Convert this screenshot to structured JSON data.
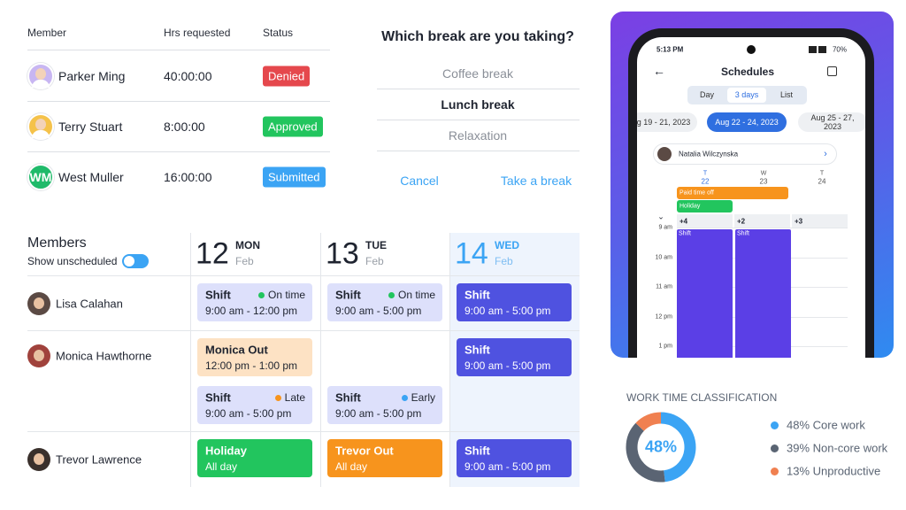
{
  "requests": {
    "headers": [
      "Member",
      "Hrs requested",
      "Status"
    ],
    "rows": [
      {
        "name": "Parker Ming",
        "hours": "40:00:00",
        "status": "Denied",
        "status_color": "#e5484d",
        "avatar_color": "#c8b6f2"
      },
      {
        "name": "Terry Stuart",
        "hours": "8:00:00",
        "status": "Approved",
        "status_color": "#22c55e",
        "avatar_color": "#f5c24a"
      },
      {
        "name": "West Muller",
        "initials": "WM",
        "hours": "16:00:00",
        "status": "Submitted",
        "status_color": "#3ba4f4",
        "avatar_color": "#1fba6a"
      }
    ]
  },
  "break_dialog": {
    "title": "Which break are you taking?",
    "options": [
      "Coffee break",
      "Lunch break",
      "Relaxation"
    ],
    "selected": 1,
    "cancel": "Cancel",
    "confirm": "Take a break"
  },
  "schedule": {
    "title": "Members",
    "toggle_label": "Show unscheduled",
    "days": [
      {
        "date": "12",
        "weekday": "MON",
        "month": "Feb"
      },
      {
        "date": "13",
        "weekday": "TUE",
        "month": "Feb"
      },
      {
        "date": "14",
        "weekday": "WED",
        "month": "Feb"
      }
    ],
    "today": 2,
    "rows": [
      {
        "name": "Lisa Calahan",
        "avatar_color": "#5b4a44",
        "cells": [
          [
            {
              "title": "Shift",
              "tag": "On time",
              "tag_color": "#22c55e",
              "time": "9:00 am - 12:00 pm",
              "color": "#dde0fb"
            }
          ],
          [
            {
              "title": "Shift",
              "tag": "On time",
              "tag_color": "#22c55e",
              "time": "9:00 am - 5:00 pm",
              "color": "#dde0fb"
            }
          ],
          [
            {
              "title": "Shift",
              "time": "9:00 am - 5:00 pm",
              "color": "#4f52e0"
            }
          ]
        ]
      },
      {
        "name": "Monica Hawthorne",
        "avatar_color": "#a0423c",
        "cells": [
          [
            {
              "title": "Monica Out",
              "time": "12:00 pm - 1:00 pm",
              "color": "#fde2c4"
            },
            {
              "title": "Shift",
              "tag": "Late",
              "tag_color": "#f7941d",
              "time": "9:00 am - 5:00 pm",
              "color": "#dde0fb"
            }
          ],
          [
            null,
            {
              "title": "Shift",
              "tag": "Early",
              "tag_color": "#3ba4f4",
              "time": "9:00 am - 5:00 pm",
              "color": "#dde0fb"
            }
          ],
          [
            {
              "title": "Shift",
              "time": "9:00 am - 5:00 pm",
              "color": "#4f52e0"
            }
          ]
        ]
      },
      {
        "name": "Trevor Lawrence",
        "avatar_color": "#3a302c",
        "cells": [
          [
            {
              "title": "Holiday",
              "time": "All day",
              "color": "#22c55e"
            }
          ],
          [
            {
              "title": "Trevor Out",
              "time": "All day",
              "color": "#f7941d"
            }
          ],
          [
            {
              "title": "Shift",
              "time": "9:00 am - 5:00 pm",
              "color": "#4f52e0"
            }
          ]
        ]
      }
    ]
  },
  "phone": {
    "time": "5:13 PM",
    "battery": "70%",
    "title": "Schedules",
    "tabs": [
      "Day",
      "3 days",
      "List"
    ],
    "selected_tab": 1,
    "ranges": [
      "g 19 - 21, 2023",
      "Aug 22 - 24, 2023",
      "Aug 25 - 27, 2023"
    ],
    "selected_range": 1,
    "member": "Natalia Wilczynska",
    "days": [
      {
        "letter": "T",
        "date": "22"
      },
      {
        "letter": "W",
        "date": "23"
      },
      {
        "letter": "T",
        "date": "24"
      }
    ],
    "all_day": [
      {
        "label": "Paid time off",
        "color": "#f7941d",
        "span": 2
      },
      {
        "label": "Holiday",
        "color": "#22c55e",
        "span": 1
      }
    ],
    "more": [
      "+4",
      "+2",
      "+3"
    ],
    "hours": [
      "9 am",
      "10 am",
      "11 am",
      "12 pm",
      "1 pm"
    ],
    "shifts": [
      {
        "label": "Shift",
        "day": 0
      },
      {
        "label": "Shift",
        "day": 1
      }
    ],
    "shift_color": "#5b3fe6"
  },
  "work_time": {
    "title": "WORK TIME CLASSIFICATION",
    "center_label": "48%",
    "segments": [
      {
        "value": 48,
        "label": "48% Core work",
        "color": "#3ba4f4"
      },
      {
        "value": 39,
        "label": "39% Non-core work",
        "color": "#5a6473"
      },
      {
        "value": 13,
        "label": "13% Unproductive",
        "color": "#f08050"
      }
    ]
  }
}
